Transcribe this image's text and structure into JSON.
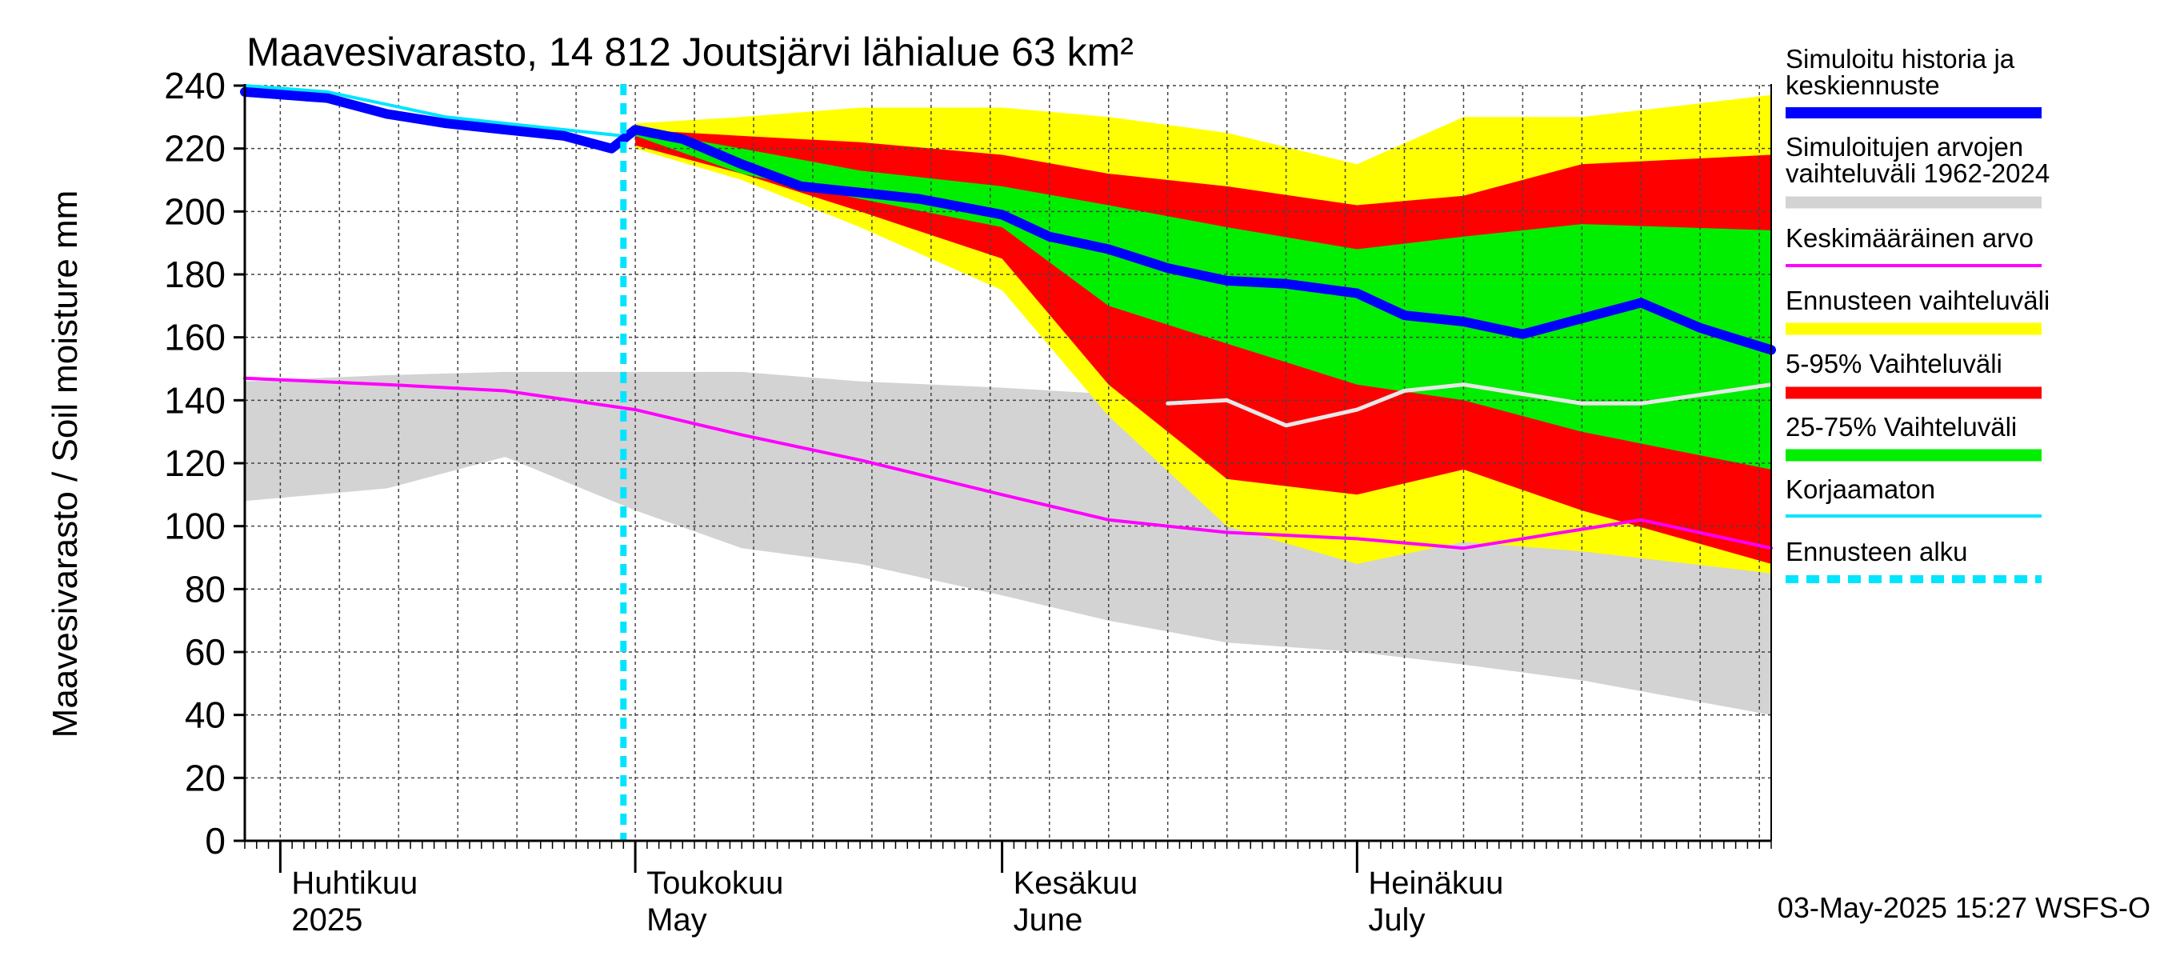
{
  "chart_data": {
    "type": "area",
    "title": "Maavesivarasto, 14 812 Joutsjärvi lähialue 63 km²",
    "ylabel": "Maavesivarasto / Soil moisture   mm",
    "ylim": [
      0,
      240
    ],
    "y_ticks": [
      0,
      20,
      40,
      60,
      80,
      100,
      120,
      140,
      160,
      180,
      200,
      220,
      240
    ],
    "x_range": [
      "2025-03-29",
      "2025-08-05"
    ],
    "x_month_labels": [
      {
        "date": "2025-04-01",
        "line1": "Huhtikuu",
        "line2": "2025"
      },
      {
        "date": "2025-05-01",
        "line1": "Toukokuu",
        "line2": "May"
      },
      {
        "date": "2025-06-01",
        "line1": "Kesäkuu",
        "line2": "June"
      },
      {
        "date": "2025-07-01",
        "line1": "Heinäkuu",
        "line2": "July"
      }
    ],
    "forecast_start": "2025-04-30",
    "grid": true,
    "legend_position": "right",
    "footer": "03-May-2025 15:27 WSFS-O",
    "legend": [
      {
        "label": "Simuloitu historia ja keskiennuste",
        "color": "#0000ff",
        "style": "thick-line"
      },
      {
        "label": "Simuloitujen arvojen vaihteluväli 1962-2024",
        "color": "#d3d3d3",
        "style": "band"
      },
      {
        "label": "Keskimääräinen arvo",
        "color": "#ff00ff",
        "style": "line"
      },
      {
        "label": "Ennusteen vaihteluväli",
        "color": "#ffff00",
        "style": "band"
      },
      {
        "label": "5-95% Vaihteluväli",
        "color": "#ff0000",
        "style": "band"
      },
      {
        "label": "25-75% Vaihteluväli",
        "color": "#00ee00",
        "style": "band"
      },
      {
        "label": "Korjaamaton",
        "color": "#00e5ff",
        "style": "line"
      },
      {
        "label": "Ennusteen alku",
        "color": "#00e5ff",
        "style": "dashed"
      }
    ],
    "series": {
      "historical_range": {
        "x": [
          "2025-03-29",
          "2025-04-10",
          "2025-04-20",
          "2025-05-01",
          "2025-05-10",
          "2025-05-20",
          "2025-06-01",
          "2025-06-10",
          "2025-06-20",
          "2025-07-01",
          "2025-07-10",
          "2025-07-20",
          "2025-08-05"
        ],
        "upper": [
          146,
          148,
          149,
          149,
          149,
          146,
          144,
          142,
          141,
          144,
          146,
          146,
          145
        ],
        "lower": [
          108,
          112,
          122,
          105,
          93,
          88,
          78,
          70,
          63,
          60,
          56,
          51,
          40
        ]
      },
      "mean_value": {
        "x": [
          "2025-03-29",
          "2025-04-10",
          "2025-04-20",
          "2025-05-01",
          "2025-05-10",
          "2025-05-20",
          "2025-06-01",
          "2025-06-10",
          "2025-06-20",
          "2025-07-01",
          "2025-07-10",
          "2025-07-20",
          "2025-07-25",
          "2025-08-05"
        ],
        "values": [
          147,
          145,
          143,
          137,
          129,
          121,
          110,
          102,
          98,
          96,
          93,
          99,
          102,
          93
        ]
      },
      "historical_upper_white": {
        "x": [
          "2025-06-15",
          "2025-06-20",
          "2025-06-25",
          "2025-07-01",
          "2025-07-05",
          "2025-07-10",
          "2025-07-20",
          "2025-07-25",
          "2025-08-05"
        ],
        "values": [
          139,
          140,
          132,
          137,
          143,
          145,
          139,
          139,
          145
        ]
      },
      "simulated_history_and_median": {
        "x": [
          "2025-03-29",
          "2025-04-05",
          "2025-04-10",
          "2025-04-15",
          "2025-04-20",
          "2025-04-25",
          "2025-04-29",
          "2025-05-01",
          "2025-05-05",
          "2025-05-10",
          "2025-05-15",
          "2025-05-20",
          "2025-05-25",
          "2025-06-01",
          "2025-06-05",
          "2025-06-10",
          "2025-06-15",
          "2025-06-20",
          "2025-06-25",
          "2025-07-01",
          "2025-07-05",
          "2025-07-10",
          "2025-07-15",
          "2025-07-20",
          "2025-07-25",
          "2025-07-30",
          "2025-08-05"
        ],
        "values": [
          238,
          236,
          231,
          228,
          226,
          224,
          220,
          226,
          223,
          215,
          208,
          206,
          204,
          199,
          192,
          188,
          182,
          178,
          177,
          174,
          167,
          165,
          161,
          166,
          171,
          163,
          156
        ]
      },
      "uncorrected": {
        "x": [
          "2025-03-29",
          "2025-04-05",
          "2025-04-10",
          "2025-04-15",
          "2025-04-20",
          "2025-04-25",
          "2025-04-30"
        ],
        "values": [
          240,
          238,
          234,
          230,
          228,
          226,
          224
        ]
      },
      "forecast_range": {
        "x": [
          "2025-05-01",
          "2025-05-10",
          "2025-05-20",
          "2025-06-01",
          "2025-06-10",
          "2025-06-20",
          "2025-07-01",
          "2025-07-10",
          "2025-07-20",
          "2025-08-05"
        ],
        "upper": [
          228,
          230,
          233,
          233,
          230,
          225,
          215,
          230,
          230,
          237
        ],
        "lower": [
          220,
          210,
          195,
          175,
          135,
          100,
          88,
          95,
          92,
          85
        ]
      },
      "p5_95_range": {
        "x": [
          "2025-05-01",
          "2025-05-10",
          "2025-05-20",
          "2025-06-01",
          "2025-06-10",
          "2025-06-20",
          "2025-07-01",
          "2025-07-10",
          "2025-07-20",
          "2025-08-05"
        ],
        "upper": [
          226,
          224,
          222,
          218,
          212,
          208,
          202,
          205,
          215,
          218
        ],
        "lower": [
          221,
          212,
          200,
          185,
          145,
          115,
          110,
          118,
          105,
          88
        ]
      },
      "p25_75_range": {
        "x": [
          "2025-05-01",
          "2025-05-10",
          "2025-05-20",
          "2025-06-01",
          "2025-06-10",
          "2025-06-20",
          "2025-07-01",
          "2025-07-10",
          "2025-07-20",
          "2025-08-05"
        ],
        "upper": [
          226,
          220,
          213,
          208,
          202,
          195,
          188,
          192,
          196,
          194
        ],
        "lower": [
          224,
          212,
          204,
          195,
          170,
          158,
          145,
          140,
          130,
          118
        ]
      }
    }
  }
}
